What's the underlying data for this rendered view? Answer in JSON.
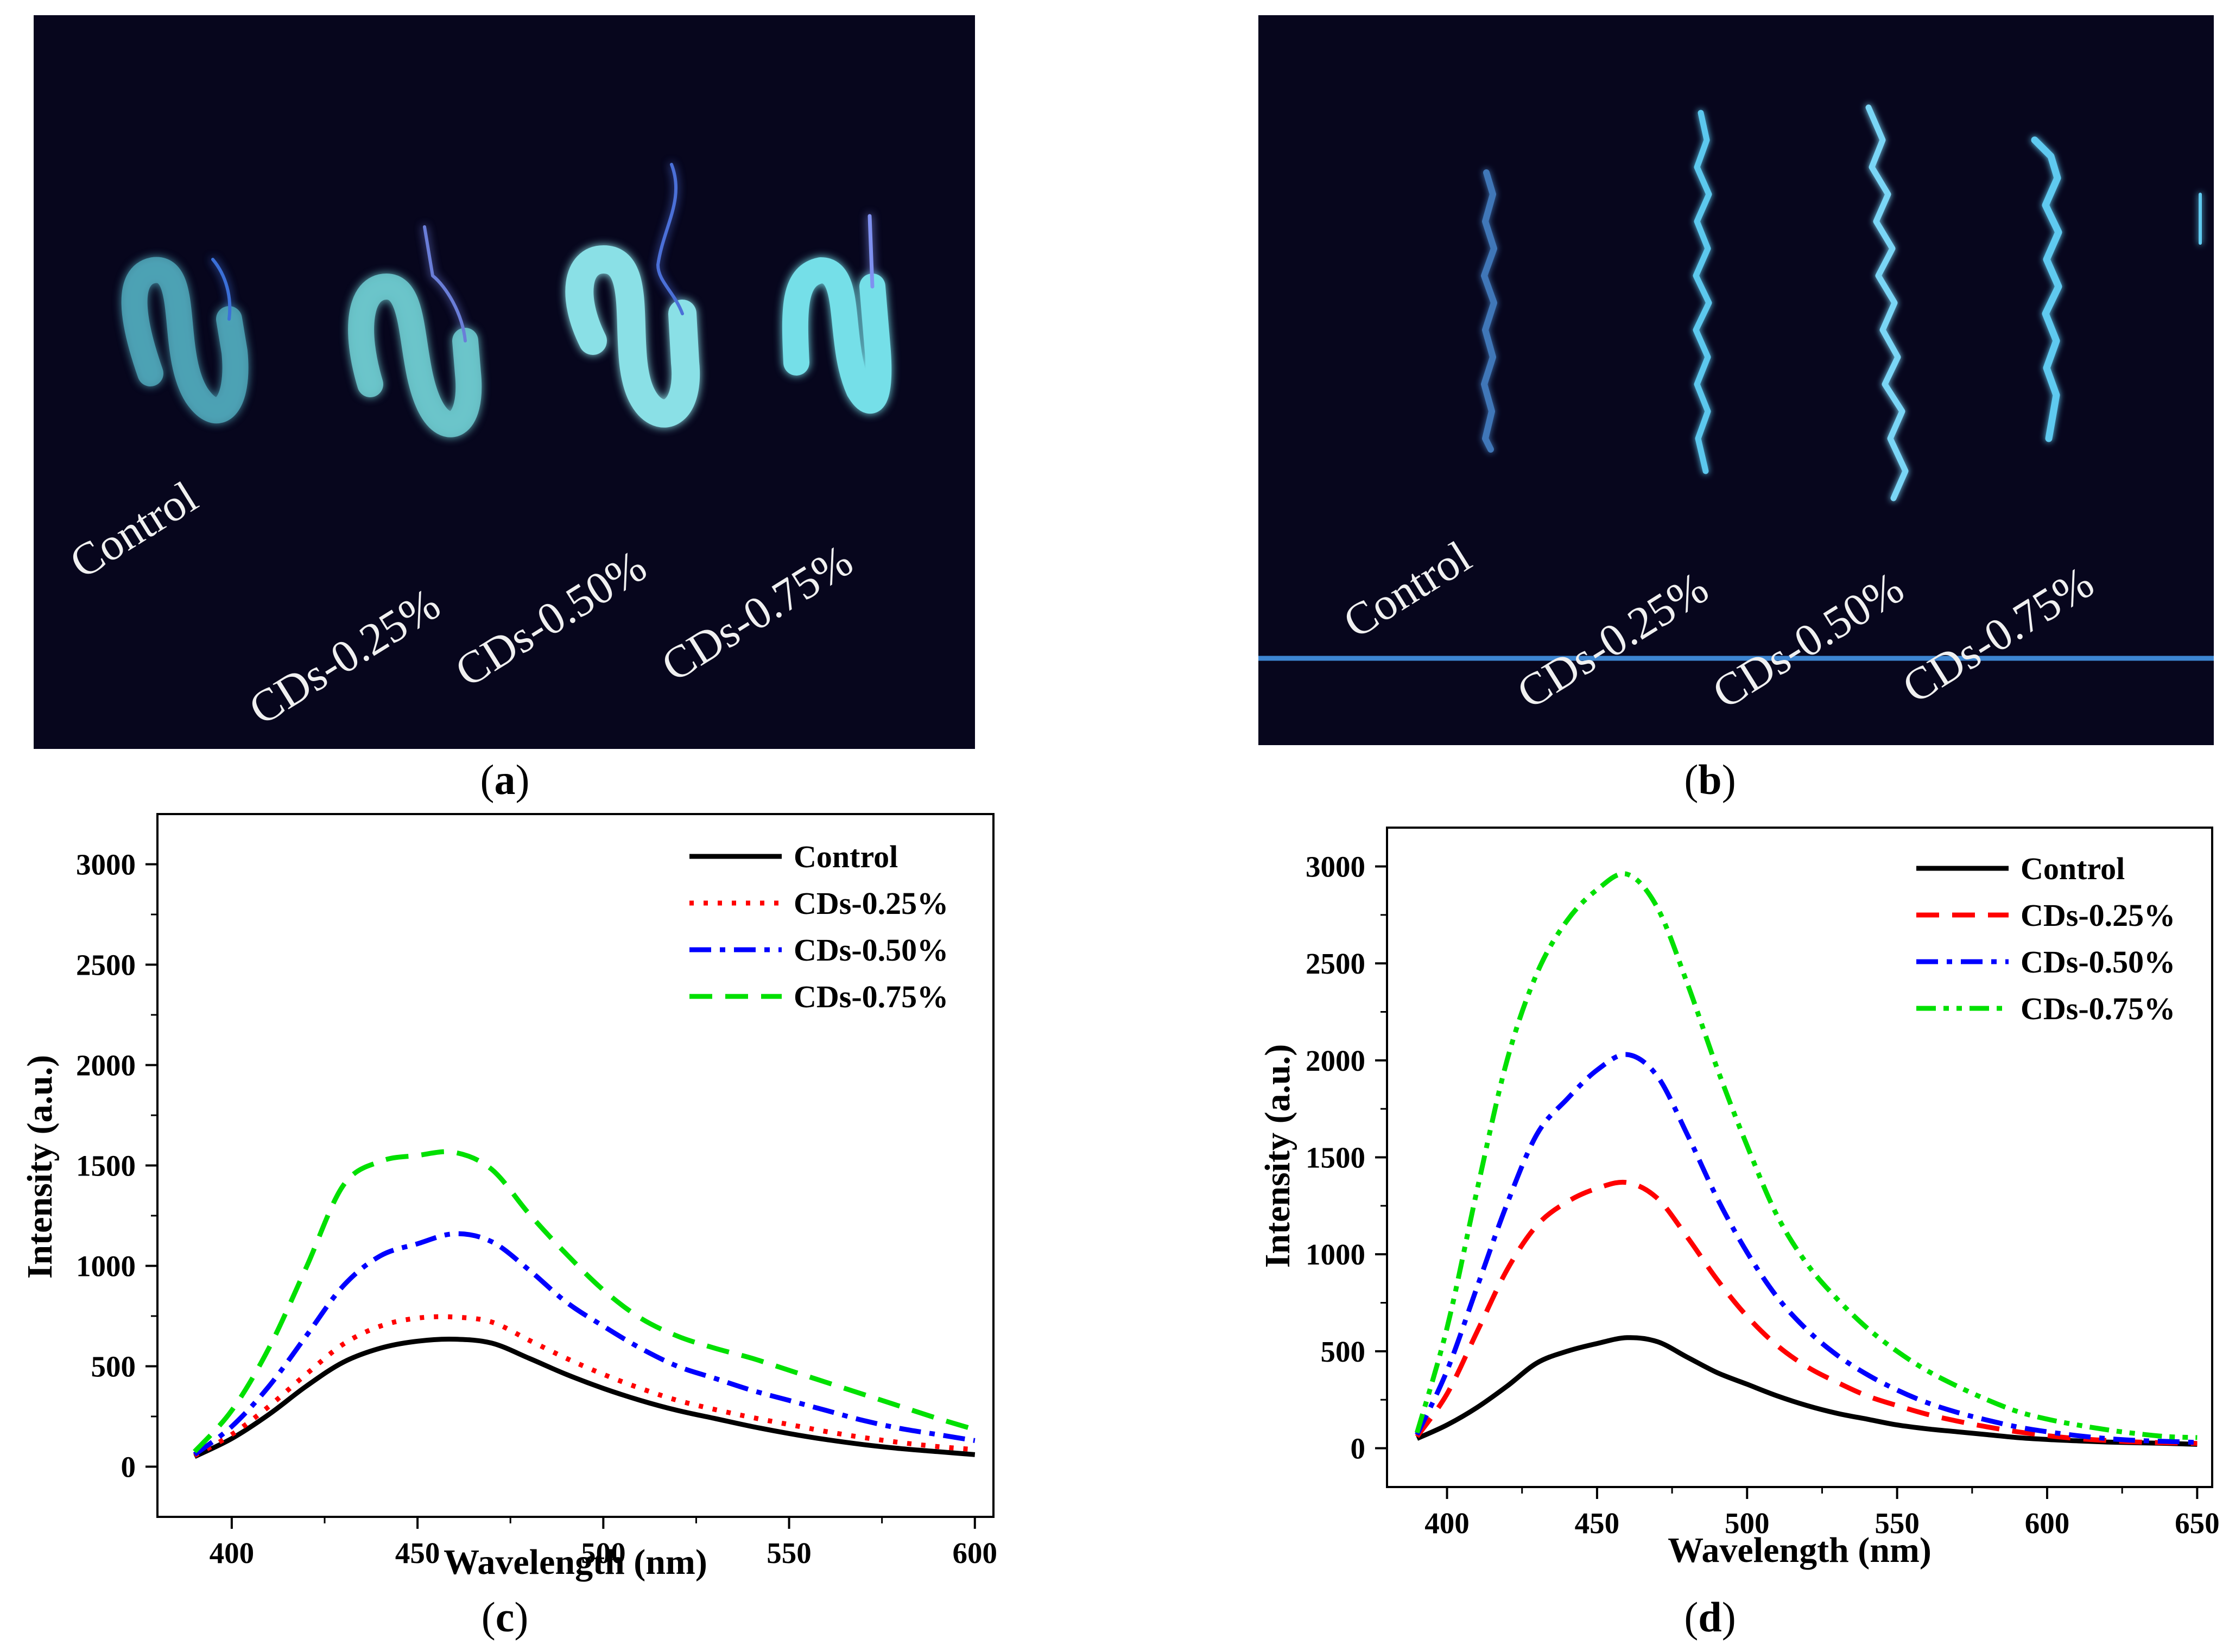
{
  "panel_a": {
    "labels": [
      "Control",
      "CDs-0.25%",
      "CDs-0.50%",
      "CDs-0.75%"
    ],
    "caption_letter": "a"
  },
  "panel_b": {
    "labels": [
      "Control",
      "CDs-0.25%",
      "CDs-0.50%",
      "CDs-0.75%"
    ],
    "caption_letter": "b"
  },
  "caption_c_letter": "c",
  "caption_d_letter": "d",
  "colors": {
    "control": "#000000",
    "cds025": "#ff0000",
    "cds050": "#0000ff",
    "cds075": "#00e000",
    "photo_bg": "#07061d",
    "glow": "#5fd0ea"
  },
  "chart_data": [
    {
      "type": "line",
      "panel": "c",
      "xlabel": "Wavelength (nm)",
      "ylabel": "Intensity (a.u.)",
      "xlim": [
        380,
        605
      ],
      "ylim": [
        -250,
        3250
      ],
      "xticks": [
        400,
        450,
        500,
        550,
        600
      ],
      "yticks": [
        0,
        500,
        1000,
        1500,
        2000,
        2500,
        3000
      ],
      "legend_position": "top-right",
      "x": [
        390,
        400,
        410,
        420,
        430,
        440,
        450,
        460,
        470,
        480,
        490,
        500,
        510,
        520,
        530,
        540,
        550,
        560,
        570,
        580,
        590,
        600
      ],
      "series": [
        {
          "name": "Control",
          "style": "solid",
          "color": "#000000",
          "values": [
            50,
            140,
            260,
            400,
            520,
            590,
            625,
            635,
            615,
            540,
            460,
            390,
            330,
            280,
            240,
            200,
            165,
            135,
            110,
            90,
            75,
            60
          ]
        },
        {
          "name": "CDs-0.25%",
          "style": "dotted",
          "color": "#ff0000",
          "values": [
            55,
            160,
            300,
            460,
            610,
            700,
            740,
            745,
            720,
            630,
            540,
            460,
            390,
            330,
            285,
            245,
            210,
            175,
            145,
            120,
            100,
            85
          ]
        },
        {
          "name": "CDs-0.50%",
          "style": "dashdot",
          "color": "#0000ff",
          "values": [
            60,
            200,
            400,
            650,
            900,
            1050,
            1110,
            1160,
            1120,
            980,
            820,
            700,
            590,
            500,
            440,
            380,
            330,
            280,
            230,
            190,
            160,
            130
          ]
        },
        {
          "name": "CDs-0.75%",
          "style": "dashed",
          "color": "#00e000",
          "values": [
            75,
            280,
            590,
            990,
            1400,
            1520,
            1550,
            1565,
            1480,
            1260,
            1060,
            880,
            740,
            650,
            590,
            540,
            480,
            420,
            360,
            300,
            240,
            185
          ]
        }
      ]
    },
    {
      "type": "line",
      "panel": "d",
      "xlabel": "Wavelength (nm)",
      "ylabel": "Intensity (a.u.)",
      "xlim": [
        380,
        655
      ],
      "ylim": [
        -200,
        3200
      ],
      "xticks": [
        400,
        450,
        500,
        550,
        600,
        650
      ],
      "yticks": [
        0,
        500,
        1000,
        1500,
        2000,
        2500,
        3000
      ],
      "legend_position": "top-right",
      "x": [
        390,
        400,
        410,
        420,
        430,
        440,
        450,
        460,
        470,
        480,
        490,
        500,
        510,
        520,
        530,
        540,
        550,
        560,
        570,
        580,
        590,
        600,
        610,
        620,
        630,
        640,
        650
      ],
      "series": [
        {
          "name": "Control",
          "style": "solid",
          "color": "#000000",
          "values": [
            50,
            120,
            210,
            320,
            440,
            500,
            540,
            570,
            550,
            470,
            390,
            330,
            270,
            220,
            180,
            150,
            120,
            100,
            85,
            70,
            55,
            45,
            38,
            32,
            28,
            25,
            20
          ]
        },
        {
          "name": "CDs-0.25%",
          "style": "dashed",
          "color": "#ff0000",
          "values": [
            60,
            280,
            600,
            920,
            1150,
            1270,
            1340,
            1370,
            1290,
            1090,
            870,
            680,
            530,
            420,
            340,
            270,
            220,
            175,
            140,
            110,
            85,
            65,
            50,
            40,
            32,
            28,
            25
          ]
        },
        {
          "name": "CDs-0.50%",
          "style": "dashdot",
          "color": "#0000ff",
          "values": [
            70,
            400,
            830,
            1260,
            1620,
            1800,
            1950,
            2030,
            1920,
            1620,
            1290,
            1010,
            780,
            610,
            480,
            380,
            300,
            235,
            185,
            145,
            110,
            85,
            65,
            50,
            40,
            35,
            30
          ]
        },
        {
          "name": "CDs-0.75%",
          "style": "dashdotdot",
          "color": "#00e000",
          "values": [
            80,
            620,
            1330,
            2000,
            2450,
            2720,
            2880,
            2960,
            2790,
            2400,
            1960,
            1560,
            1200,
            950,
            770,
            620,
            500,
            400,
            320,
            250,
            190,
            150,
            120,
            95,
            75,
            60,
            55
          ]
        }
      ]
    }
  ]
}
